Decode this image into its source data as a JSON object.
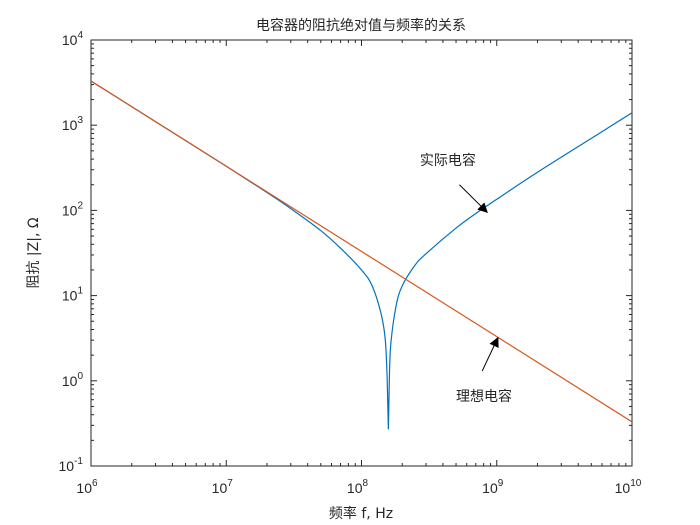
{
  "chart_data": {
    "type": "line",
    "title": "电容器的阻抗绝对值与频率的关系",
    "xlabel": "频率 f, Hz",
    "ylabel": "阻抗 |Z|, Ω",
    "xscale": "log",
    "yscale": "log",
    "xlim": [
      1000000,
      10000000000
    ],
    "ylim": [
      0.1,
      10000
    ],
    "grid": false,
    "x_ticks": [
      {
        "base": "10",
        "exp": "6",
        "value": 1000000
      },
      {
        "base": "10",
        "exp": "7",
        "value": 10000000
      },
      {
        "base": "10",
        "exp": "8",
        "value": 100000000
      },
      {
        "base": "10",
        "exp": "9",
        "value": 1000000000
      },
      {
        "base": "10",
        "exp": "10",
        "value": 10000000000
      }
    ],
    "y_ticks": [
      {
        "base": "10",
        "exp": "-1",
        "value": 0.1
      },
      {
        "base": "10",
        "exp": "0",
        "value": 1
      },
      {
        "base": "10",
        "exp": "1",
        "value": 10
      },
      {
        "base": "10",
        "exp": "2",
        "value": 100
      },
      {
        "base": "10",
        "exp": "3",
        "value": 1000
      },
      {
        "base": "10",
        "exp": "4",
        "value": 10000
      }
    ],
    "series": [
      {
        "color": "#0072BD",
        "points": [
          [
            1000000,
            3300
          ],
          [
            3000000,
            1100
          ],
          [
            10000000,
            330
          ],
          [
            20000000,
            162
          ],
          [
            30000000,
            105
          ],
          [
            50000000,
            58
          ],
          [
            70000000,
            36
          ],
          [
            100000000,
            20
          ],
          [
            120000000,
            13
          ],
          [
            140000000,
            6
          ],
          [
            150000000,
            3
          ],
          [
            155000000,
            1
          ],
          [
            158000000,
            0.27
          ],
          [
            161000000,
            1.2
          ],
          [
            165000000,
            2.8
          ],
          [
            180000000,
            7.5
          ],
          [
            200000000,
            13
          ],
          [
            250000000,
            23
          ],
          [
            300000000,
            31
          ],
          [
            500000000,
            62
          ],
          [
            700000000,
            92
          ],
          [
            1000000000,
            135
          ],
          [
            2000000000,
            280
          ],
          [
            5000000000,
            700
          ],
          [
            10000000000,
            1400
          ]
        ]
      },
      {
        "color": "#D95319",
        "points": [
          [
            1000000,
            3300
          ],
          [
            10000000000,
            0.33
          ]
        ]
      }
    ],
    "annotations": [
      {
        "text": "实际电容",
        "label_x": 270000000,
        "label_y": 340,
        "arrow_from_x": 530000000,
        "arrow_from_y": 200,
        "arrow_to_x": 850000000,
        "arrow_to_y": 95
      },
      {
        "text": "理想电容",
        "label_x": 500000000,
        "label_y": 0.58,
        "arrow_from_x": 780000000,
        "arrow_from_y": 1.3,
        "arrow_to_x": 1020000000,
        "arrow_to_y": 3.2
      }
    ]
  }
}
